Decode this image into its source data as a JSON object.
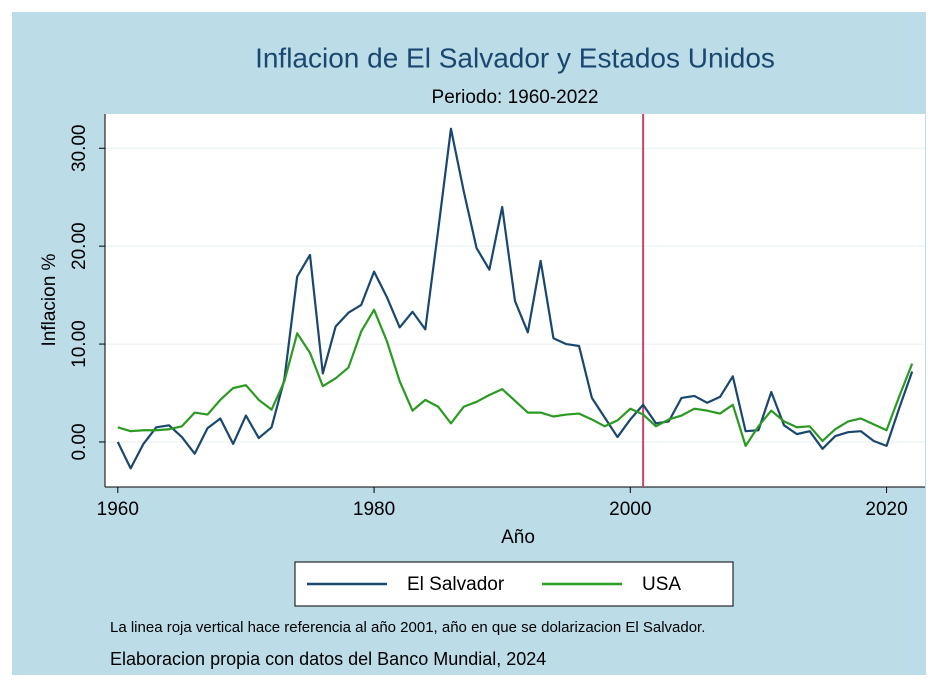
{
  "chart_data": {
    "type": "line",
    "title": "Inflacion de El Salvador y Estados Unidos",
    "subtitle": "Periodo: 1960-2022",
    "xlabel": "Año",
    "ylabel": "Inflacion %",
    "x": [
      1960,
      1961,
      1962,
      1963,
      1964,
      1965,
      1966,
      1967,
      1968,
      1969,
      1970,
      1971,
      1972,
      1973,
      1974,
      1975,
      1976,
      1977,
      1978,
      1979,
      1980,
      1981,
      1982,
      1983,
      1984,
      1985,
      1986,
      1987,
      1988,
      1989,
      1990,
      1991,
      1992,
      1993,
      1994,
      1995,
      1996,
      1997,
      1998,
      1999,
      2000,
      2001,
      2002,
      2003,
      2004,
      2005,
      2006,
      2007,
      2008,
      2009,
      2010,
      2011,
      2012,
      2013,
      2014,
      2015,
      2016,
      2017,
      2018,
      2019,
      2020,
      2021,
      2022
    ],
    "series": [
      {
        "name": "El Salvador",
        "color": "#1a476f",
        "values": [
          0,
          -2.7,
          -0.2,
          1.5,
          1.7,
          0.5,
          -1.2,
          1.4,
          2.4,
          -0.2,
          2.7,
          0.4,
          1.5,
          6.4,
          16.9,
          19.1,
          7.0,
          11.8,
          13.2,
          14.0,
          17.4,
          14.8,
          11.7,
          13.3,
          11.5,
          21.6,
          32.0,
          25.6,
          19.8,
          17.6,
          24.0,
          14.4,
          11.2,
          18.5,
          10.6,
          10.0,
          9.8,
          4.5,
          2.5,
          0.5,
          2.3,
          3.8,
          1.9,
          2.1,
          4.5,
          4.7,
          4.0,
          4.6,
          6.7,
          1.1,
          1.2,
          5.1,
          1.7,
          0.8,
          1.1,
          -0.7,
          0.6,
          1.0,
          1.1,
          0.1,
          -0.4,
          3.5,
          7.2
        ]
      },
      {
        "name": "USA",
        "color": "#2b9a22",
        "values": [
          1.5,
          1.1,
          1.2,
          1.2,
          1.3,
          1.6,
          3.0,
          2.8,
          4.3,
          5.5,
          5.8,
          4.3,
          3.3,
          6.2,
          11.1,
          9.1,
          5.7,
          6.5,
          7.6,
          11.3,
          13.5,
          10.3,
          6.2,
          3.2,
          4.3,
          3.6,
          1.9,
          3.6,
          4.1,
          4.8,
          5.4,
          4.2,
          3.0,
          3.0,
          2.6,
          2.8,
          2.9,
          2.3,
          1.6,
          2.2,
          3.4,
          2.8,
          1.6,
          2.3,
          2.7,
          3.4,
          3.2,
          2.9,
          3.8,
          -0.4,
          1.6,
          3.2,
          2.1,
          1.5,
          1.6,
          0.1,
          1.3,
          2.1,
          2.4,
          1.8,
          1.2,
          4.7,
          8.0
        ]
      }
    ],
    "xlim": [
      1959,
      2023
    ],
    "xticks": [
      1960,
      1980,
      2000,
      2020
    ],
    "ylim": [
      -4.6,
      33.5
    ],
    "yticks": [
      {
        "value": 0,
        "label": "0.00"
      },
      {
        "value": 10,
        "label": "10.00"
      },
      {
        "value": 20,
        "label": "20.00"
      },
      {
        "value": 30,
        "label": "30.00"
      }
    ],
    "grid": true,
    "vline": {
      "x": 2001,
      "color": "#c8446a"
    },
    "legend": "bottom",
    "notes": [
      "La linea roja vertical hace referencia al año 2001, año en que se dolarizacion El Salvador.",
      "Elaboracion propia con datos del Banco Mundial, 2024"
    ]
  }
}
